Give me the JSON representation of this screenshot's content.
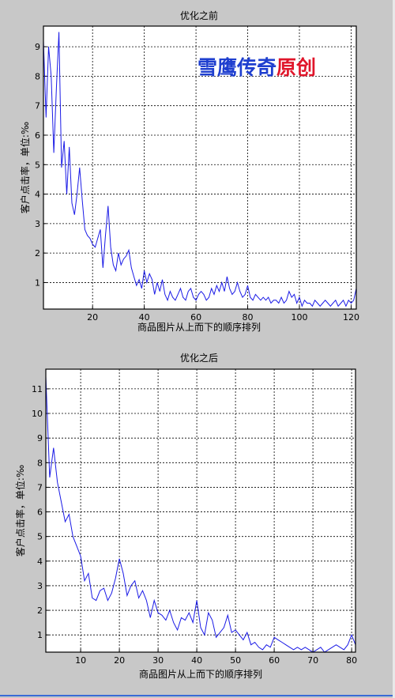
{
  "watermark": {
    "part1": "雪鹰传奇",
    "part2": "原创",
    "color1": "#1f3fcf",
    "color2": "#e0162b"
  },
  "colors": {
    "line": "#1a1ae6",
    "background": "#c8c8c8",
    "plot_bg": "#ffffff",
    "grid": "#000000"
  },
  "chart_data": [
    {
      "type": "line",
      "title": "优化之前",
      "xlabel": "商品图片从上而下的顺序排列",
      "ylabel": "客户点击率，单位:‰",
      "xlim": [
        1,
        122
      ],
      "ylim": [
        0.1,
        9.7
      ],
      "xticks": [
        20,
        40,
        60,
        80,
        100,
        120
      ],
      "yticks": [
        1,
        2,
        3,
        4,
        5,
        6,
        7,
        8,
        9
      ],
      "grid": true,
      "x": [
        1,
        2,
        3,
        4,
        5,
        6,
        7,
        8,
        9,
        10,
        11,
        12,
        13,
        14,
        15,
        16,
        17,
        18,
        19,
        20,
        21,
        22,
        23,
        24,
        25,
        26,
        27,
        28,
        29,
        30,
        31,
        32,
        33,
        34,
        35,
        36,
        37,
        38,
        39,
        40,
        41,
        42,
        43,
        44,
        45,
        46,
        47,
        48,
        49,
        50,
        51,
        52,
        53,
        54,
        55,
        56,
        57,
        58,
        59,
        60,
        61,
        62,
        63,
        64,
        65,
        66,
        67,
        68,
        69,
        70,
        71,
        72,
        73,
        74,
        75,
        76,
        77,
        78,
        79,
        80,
        81,
        82,
        83,
        84,
        85,
        86,
        87,
        88,
        89,
        90,
        91,
        92,
        93,
        94,
        95,
        96,
        97,
        98,
        99,
        100,
        101,
        102,
        103,
        104,
        105,
        106,
        107,
        108,
        109,
        110,
        111,
        112,
        113,
        114,
        115,
        116,
        117,
        118,
        119,
        120,
        121,
        122
      ],
      "y": [
        9.2,
        6.6,
        9.0,
        8.0,
        5.4,
        7.6,
        9.5,
        4.9,
        5.8,
        4.0,
        5.6,
        3.7,
        3.3,
        4.0,
        4.9,
        3.8,
        2.8,
        2.6,
        2.5,
        2.3,
        2.2,
        2.5,
        2.8,
        1.5,
        2.6,
        3.6,
        2.2,
        1.6,
        1.4,
        2.0,
        1.6,
        1.8,
        1.9,
        2.1,
        1.5,
        1.2,
        0.9,
        1.1,
        0.8,
        1.4,
        1.0,
        1.3,
        1.1,
        0.6,
        1.0,
        0.7,
        1.1,
        0.6,
        0.4,
        0.7,
        0.5,
        0.4,
        0.6,
        0.8,
        0.5,
        0.4,
        0.7,
        0.8,
        0.5,
        0.4,
        0.6,
        0.7,
        0.6,
        0.4,
        0.5,
        0.8,
        0.6,
        0.9,
        0.7,
        1.0,
        0.7,
        1.2,
        0.8,
        0.6,
        0.7,
        1.0,
        0.7,
        0.5,
        0.6,
        0.9,
        0.5,
        0.4,
        0.6,
        0.5,
        0.4,
        0.5,
        0.4,
        0.5,
        0.3,
        0.4,
        0.4,
        0.3,
        0.5,
        0.3,
        0.4,
        0.7,
        0.5,
        0.6,
        0.3,
        0.5,
        0.2,
        0.4,
        0.3,
        0.3,
        0.2,
        0.4,
        0.3,
        0.2,
        0.3,
        0.4,
        0.3,
        0.2,
        0.3,
        0.4,
        0.2,
        0.3,
        0.4,
        0.2,
        0.4,
        0.3,
        0.4,
        0.8
      ]
    },
    {
      "type": "line",
      "title": "优化之后",
      "xlabel": "商品图片从上而下的顺序排列",
      "ylabel": "客户点击率，单位:‰",
      "xlim": [
        1,
        81
      ],
      "ylim": [
        0.3,
        11.8
      ],
      "xticks": [
        10,
        20,
        30,
        40,
        50,
        60,
        70,
        80
      ],
      "yticks": [
        1,
        2,
        3,
        4,
        5,
        6,
        7,
        8,
        9,
        10,
        11
      ],
      "grid": true,
      "x": [
        1,
        2,
        3,
        4,
        5,
        6,
        7,
        8,
        9,
        10,
        11,
        12,
        13,
        14,
        15,
        16,
        17,
        18,
        19,
        20,
        21,
        22,
        23,
        24,
        25,
        26,
        27,
        28,
        29,
        30,
        31,
        32,
        33,
        34,
        35,
        36,
        37,
        38,
        39,
        40,
        41,
        42,
        43,
        44,
        45,
        46,
        47,
        48,
        49,
        50,
        51,
        52,
        53,
        54,
        55,
        56,
        57,
        58,
        59,
        60,
        61,
        62,
        63,
        64,
        65,
        66,
        67,
        68,
        69,
        70,
        71,
        72,
        73,
        74,
        75,
        76,
        77,
        78,
        79,
        80,
        81
      ],
      "y": [
        11.5,
        7.4,
        8.6,
        7.2,
        6.4,
        5.6,
        5.9,
        5.0,
        4.6,
        4.2,
        3.2,
        3.5,
        2.5,
        2.4,
        2.8,
        2.9,
        2.4,
        2.7,
        3.3,
        4.1,
        3.5,
        2.6,
        3.0,
        3.2,
        2.5,
        2.8,
        2.4,
        1.7,
        2.4,
        1.9,
        1.8,
        1.6,
        2.0,
        1.5,
        1.2,
        1.7,
        1.6,
        1.9,
        1.5,
        2.4,
        1.3,
        1.0,
        1.9,
        1.6,
        0.9,
        1.1,
        1.3,
        1.8,
        1.1,
        1.2,
        1.0,
        0.8,
        1.1,
        0.6,
        0.7,
        0.5,
        0.4,
        0.6,
        0.5,
        0.9,
        0.8,
        0.7,
        0.6,
        0.5,
        0.4,
        0.5,
        0.4,
        0.5,
        0.4,
        0.3,
        0.4,
        0.5,
        0.3,
        0.4,
        0.5,
        0.6,
        0.5,
        0.4,
        0.6,
        1.0,
        0.6
      ]
    }
  ]
}
